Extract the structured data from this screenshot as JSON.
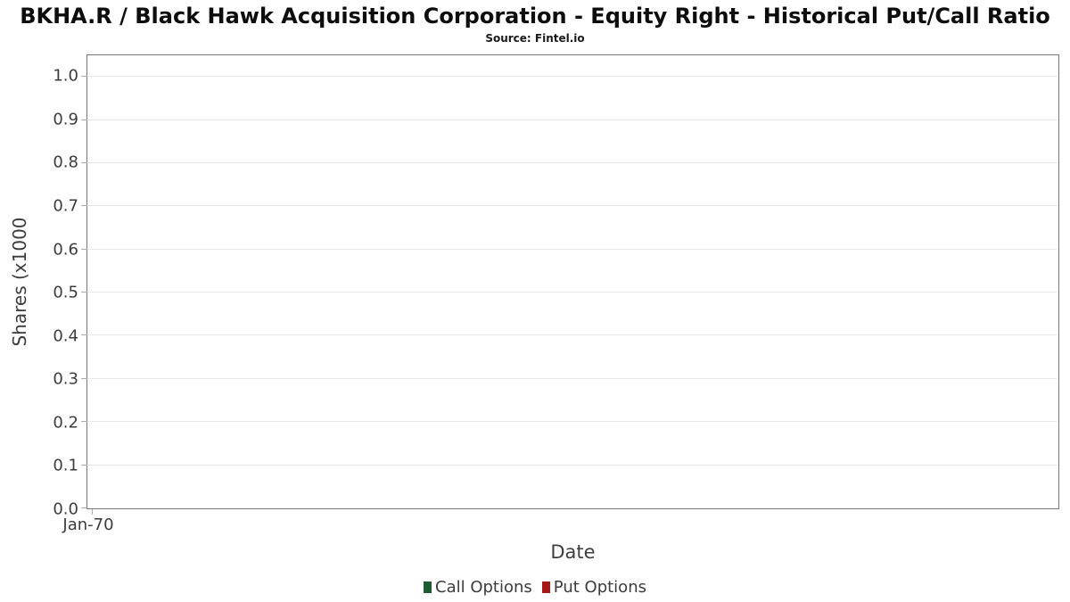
{
  "title": "BKHA.R / Black Hawk Acquisition Corporation - Equity Right - Historical Put/Call Ratio",
  "subtitle": "Source: Fintel.io",
  "chart_data": {
    "type": "line",
    "title": "BKHA.R / Black Hawk Acquisition Corporation - Equity Right - Historical Put/Call Ratio",
    "subtitle": "Source: Fintel.io",
    "xlabel": "Date",
    "ylabel": "Shares (x1000",
    "x_ticks": [
      "Jan-70"
    ],
    "y_ticks": [
      0.0,
      0.1,
      0.2,
      0.3,
      0.4,
      0.5,
      0.6,
      0.7,
      0.8,
      0.9,
      1.0
    ],
    "ylim": [
      0,
      1.05
    ],
    "grid": true,
    "legend_position": "bottom",
    "series": [
      {
        "name": "Call Options",
        "color": "#1e5b30",
        "values": []
      },
      {
        "name": "Put Options",
        "color": "#a81717",
        "values": []
      }
    ]
  }
}
